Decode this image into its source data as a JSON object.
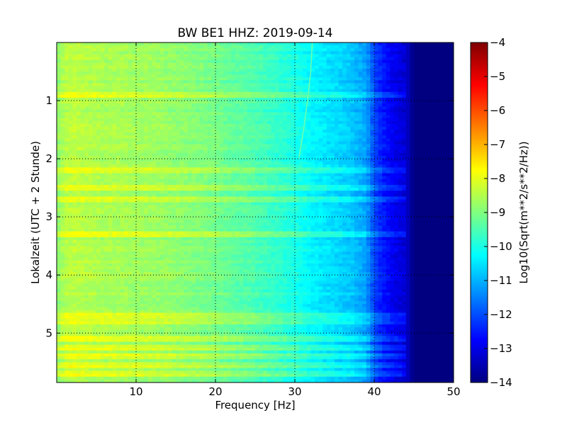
{
  "chart_data": {
    "type": "heatmap",
    "title": "BW BE1 HHZ: 2019-09-14",
    "xlabel": "Frequency [Hz]",
    "ylabel": "Lokalzeit (UTC + 2 Stunde)",
    "xlim": [
      0,
      50
    ],
    "ylim": [
      5.85,
      0
    ],
    "x_ticks": [
      10,
      20,
      30,
      40,
      50
    ],
    "y_ticks": [
      1,
      2,
      3,
      4,
      5
    ],
    "grid": true,
    "colormap": "jet",
    "colorbar": {
      "label": "Log10(Sqrt(m**2/s**2/Hz))",
      "range": [
        -14,
        -4
      ],
      "ticks": [
        -4,
        -5,
        -6,
        -7,
        -8,
        -9,
        -10,
        -11,
        -12,
        -13,
        -14
      ]
    },
    "frequency_profile": {
      "frequency_hz": [
        0,
        1,
        2,
        4,
        6,
        8,
        10,
        12,
        14,
        16,
        18,
        20,
        22,
        24,
        26,
        28,
        30,
        32,
        34,
        36,
        37,
        38,
        39,
        40,
        41,
        42,
        43,
        44,
        45,
        50
      ],
      "log_amplitude": [
        -8.9,
        -8.5,
        -8.4,
        -8.5,
        -8.6,
        -8.6,
        -8.7,
        -8.7,
        -8.8,
        -8.9,
        -9.0,
        -9.1,
        -9.3,
        -9.4,
        -9.6,
        -9.8,
        -10.0,
        -10.3,
        -10.5,
        -10.7,
        -10.8,
        -11.0,
        -11.2,
        -12.1,
        -12.5,
        -12.8,
        -13.0,
        -13.2,
        -14.0,
        -14.0
      ]
    },
    "bright_bands_hours": [
      0.9,
      2.2,
      2.5,
      2.7,
      3.3,
      4.7,
      4.8,
      5.1,
      5.25,
      5.38,
      5.55,
      5.72
    ],
    "drift_line": {
      "hours": [
        0,
        0.5,
        1.0,
        1.5,
        2.0
      ],
      "frequency_hz": [
        32.2,
        32.0,
        31.6,
        31.1,
        30.5
      ]
    }
  }
}
